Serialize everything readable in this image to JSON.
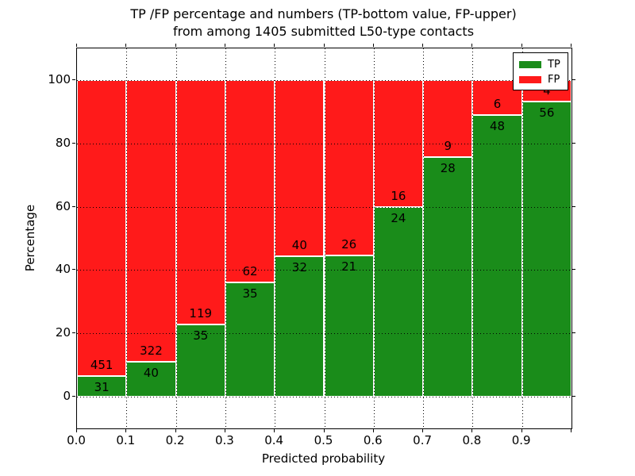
{
  "figure": {
    "title_line1": "TP /FP percentage and numbers (TP-bottom value, FP-upper)",
    "title_line2": "from among 1405 submitted L50-type contacts"
  },
  "chart_data": {
    "type": "bar",
    "stacked": true,
    "title": "TP /FP percentage and numbers (TP-bottom value, FP-upper) from among 1405 submitted L50-type contacts",
    "xlabel": "Predicted probability",
    "ylabel": "Percentage",
    "total_contacts": 1405,
    "bin_edges": [
      0.0,
      0.1,
      0.2,
      0.3,
      0.4,
      0.5,
      0.6,
      0.7,
      0.8,
      0.9,
      1.0
    ],
    "x_tick_labels": [
      "0.0",
      "0.1",
      "0.2",
      "0.3",
      "0.4",
      "0.5",
      "0.6",
      "0.7",
      "0.8",
      "0.9"
    ],
    "y_tick_labels": [
      "0",
      "20",
      "40",
      "60",
      "80",
      "100"
    ],
    "y_tick_values": [
      0,
      20,
      40,
      60,
      80,
      100
    ],
    "xlim": [
      0.0,
      1.0
    ],
    "ylim": [
      -10,
      110
    ],
    "grid": true,
    "grid_style": "dotted",
    "series": [
      {
        "name": "TP",
        "color": "#1a8c1a",
        "counts": [
          31,
          40,
          35,
          35,
          32,
          21,
          24,
          28,
          48,
          56
        ]
      },
      {
        "name": "FP",
        "color": "#ff1a1a",
        "counts": [
          451,
          322,
          119,
          62,
          40,
          26,
          16,
          9,
          6,
          4
        ]
      }
    ],
    "tp_percentages": [
      6.43,
      11.05,
      22.73,
      36.08,
      44.44,
      44.68,
      60.0,
      75.68,
      88.89,
      93.33
    ],
    "legend": {
      "position": "upper right",
      "entries": [
        "TP",
        "FP"
      ]
    }
  }
}
